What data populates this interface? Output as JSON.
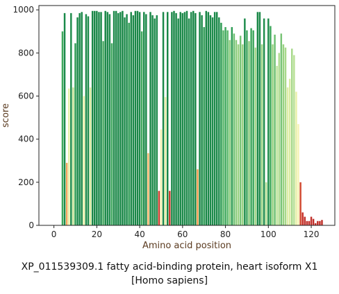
{
  "chart_data": {
    "type": "bar",
    "title": "XP_011539309.1 fatty acid-binding protein, heart isoform X1",
    "subtitle": "[Homo sapiens]",
    "xlabel": "Amino acid position",
    "ylabel": "score",
    "xlim": [
      -7,
      131
    ],
    "ylim": [
      0,
      1020
    ],
    "xticks": [
      0,
      20,
      40,
      60,
      80,
      100,
      120
    ],
    "yticks": [
      0,
      200,
      400,
      600,
      800,
      1000
    ],
    "grid": false,
    "legend": "none",
    "series": [
      {
        "x": [
          4,
          5,
          6,
          7,
          8,
          9,
          10,
          11,
          12,
          13,
          14,
          15,
          16,
          17,
          18,
          19,
          20,
          21,
          22,
          23,
          24,
          25,
          26,
          27,
          28,
          29,
          30,
          31,
          32,
          33,
          34,
          35,
          36,
          37,
          38,
          39,
          40,
          41,
          42,
          43,
          44,
          45,
          46,
          47,
          48,
          49,
          50,
          51,
          52,
          53,
          54,
          55,
          56,
          57,
          58,
          59,
          60,
          61,
          62,
          63,
          64,
          65,
          66,
          67,
          68,
          69,
          70,
          71,
          72,
          73,
          74,
          75,
          76,
          77,
          78,
          79,
          80,
          81,
          82,
          83,
          84,
          85,
          86,
          87,
          88,
          89,
          90,
          91,
          92,
          93,
          94,
          95,
          96,
          97,
          98,
          99,
          100,
          101,
          102,
          103,
          104,
          105,
          106,
          107,
          108,
          109,
          110,
          111,
          112,
          113,
          114,
          115,
          116,
          117,
          118,
          119,
          120,
          121,
          122,
          123,
          124,
          125
        ],
        "values": [
          900,
          985,
          290,
          635,
          985,
          640,
          845,
          965,
          985,
          990,
          600,
          980,
          970,
          640,
          995,
          995,
          995,
          990,
          990,
          855,
          995,
          990,
          980,
          845,
          995,
          995,
          985,
          990,
          995,
          965,
          980,
          940,
          990,
          975,
          995,
          995,
          990,
          900,
          990,
          980,
          335,
          990,
          975,
          960,
          975,
          160,
          445,
          990,
          595,
          990,
          160,
          990,
          995,
          985,
          960,
          990,
          985,
          990,
          995,
          960,
          990,
          995,
          985,
          260,
          990,
          975,
          920,
          995,
          990,
          975,
          965,
          990,
          990,
          965,
          940,
          905,
          920,
          905,
          860,
          920,
          890,
          860,
          840,
          880,
          840,
          960,
          905,
          855,
          915,
          905,
          825,
          990,
          990,
          840,
          960,
          200,
          960,
          925,
          840,
          885,
          740,
          800,
          890,
          840,
          825,
          640,
          680,
          820,
          790,
          620,
          470,
          200,
          60,
          40,
          20,
          20,
          40,
          30,
          10,
          20,
          20,
          25
        ],
        "colors": [
          "#3ea85c",
          "#1a8a4a",
          "#f1a55a",
          "#e8f2a8",
          "#1f8c4c",
          "#c8e39a",
          "#2e9c54",
          "#1c8a4a",
          "#1a8848",
          "#1a8848",
          "#e8f0a8",
          "#1c8a4a",
          "#1e8c4c",
          "#d8eba2",
          "#188646",
          "#188646",
          "#188646",
          "#1a8848",
          "#1a8848",
          "#4aaa62",
          "#188646",
          "#1a8848",
          "#1c8a4a",
          "#3da65c",
          "#188646",
          "#188646",
          "#1a8848",
          "#1a8848",
          "#188646",
          "#1e8c4c",
          "#1c8a4a",
          "#2e9c54",
          "#1a8848",
          "#1c8a4a",
          "#188646",
          "#188646",
          "#1a8848",
          "#3ea85c",
          "#1a8848",
          "#1c8a4a",
          "#f5b870",
          "#1a8848",
          "#1c8a4a",
          "#1e8c4c",
          "#1c8a4a",
          "#c83a2a",
          "#f4f0b0",
          "#1a8848",
          "#e8eea8",
          "#1a8848",
          "#c83a2a",
          "#1a8848",
          "#188646",
          "#1a8848",
          "#1e8c4c",
          "#1a8848",
          "#1a8848",
          "#1a8848",
          "#188646",
          "#1e8c4c",
          "#1a8848",
          "#188646",
          "#1a8848",
          "#f2a050",
          "#1a8848",
          "#1c8a4a",
          "#2e9c54",
          "#188646",
          "#1a8848",
          "#1c8a4a",
          "#1e8c4c",
          "#1a8848",
          "#1a8848",
          "#1e8c4c",
          "#2e9c54",
          "#5ab86a",
          "#40a85e",
          "#5ab86a",
          "#8ccc7e",
          "#2e9c54",
          "#6ec072",
          "#8ccc7e",
          "#9ad282",
          "#78c476",
          "#9ad282",
          "#1e8c4c",
          "#40a85e",
          "#8ccc7e",
          "#3ea85c",
          "#40a85e",
          "#a6d88a",
          "#1a8848",
          "#1a8848",
          "#9ad282",
          "#1e8c4c",
          "#b8e096",
          "#1e8c4c",
          "#3ea85c",
          "#9ad282",
          "#6ec072",
          "#c0e49c",
          "#b0dc90",
          "#78c476",
          "#9ad282",
          "#a6d88a",
          "#e0eea6",
          "#d8eba2",
          "#a6d88a",
          "#b8e096",
          "#e8f0a8",
          "#f6f4b6",
          "#d24a30",
          "#c62e26",
          "#c0302a",
          "#c0302a",
          "#c0302a",
          "#c0302a",
          "#c0302a",
          "#c0302a",
          "#c0302a",
          "#c0302a",
          "#c0302a"
        ]
      }
    ]
  }
}
